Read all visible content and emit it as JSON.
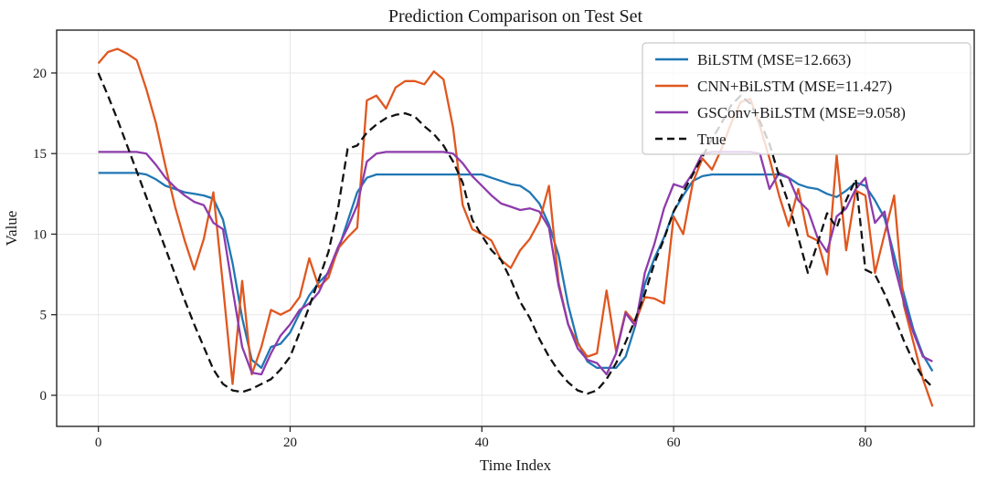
{
  "title": "Prediction Comparison on Test Set",
  "axes": {
    "xlabel": "Time Index",
    "ylabel": "Value",
    "x_ticks": [
      0,
      20,
      40,
      60,
      80
    ],
    "y_ticks": [
      0,
      5,
      10,
      15,
      20
    ]
  },
  "legend": {
    "position": "upper right",
    "entries": [
      {
        "label": "BiLSTM (MSE=12.663)",
        "mse": 12.663,
        "color": "#1f77b4",
        "dash": false
      },
      {
        "label": "CNN+BiLSTM (MSE=11.427)",
        "mse": 11.427,
        "color": "#e0571f",
        "dash": false
      },
      {
        "label": "GSConv+BiLSTM (MSE=9.058)",
        "mse": 9.058,
        "color": "#8e3bac",
        "dash": false
      },
      {
        "label": "True",
        "mse": null,
        "color": "#111111",
        "dash": true
      }
    ]
  },
  "chart_data": {
    "type": "line",
    "title": "Prediction Comparison on Test Set",
    "xlabel": "Time Index",
    "ylabel": "Value",
    "x_is_index": true,
    "x_range": [
      0,
      87
    ],
    "xlim": [
      -4.35,
      91.35
    ],
    "ylim": [
      -1.93,
      22.66
    ],
    "grid": true,
    "legend_position": "upper right",
    "series": [
      {
        "name": "BiLSTM (MSE=12.663)",
        "color": "#1f77b4",
        "dash": false,
        "values": [
          13.8,
          13.8,
          13.8,
          13.8,
          13.8,
          13.7,
          13.4,
          13.0,
          12.8,
          12.6,
          12.5,
          12.4,
          12.2,
          10.9,
          8.2,
          4.8,
          2.2,
          1.7,
          3.0,
          3.2,
          3.9,
          5.1,
          6.2,
          7.0,
          7.6,
          9.0,
          10.8,
          12.6,
          13.5,
          13.7,
          13.7,
          13.7,
          13.7,
          13.7,
          13.7,
          13.7,
          13.7,
          13.7,
          13.7,
          13.7,
          13.7,
          13.5,
          13.3,
          13.1,
          13.0,
          12.6,
          11.9,
          10.6,
          8.7,
          5.6,
          3.3,
          2.1,
          1.7,
          1.7,
          1.7,
          2.4,
          4.3,
          6.9,
          8.5,
          9.8,
          11.4,
          12.4,
          13.3,
          13.6,
          13.7,
          13.7,
          13.7,
          13.7,
          13.7,
          13.7,
          13.7,
          13.7,
          13.5,
          13.1,
          12.9,
          12.8,
          12.5,
          12.3,
          12.7,
          13.2,
          13.0,
          12.1,
          11.0,
          8.7,
          6.3,
          4.1,
          2.5,
          1.5
        ]
      },
      {
        "name": "CNN+BiLSTM (MSE=11.427)",
        "color": "#e0571f",
        "dash": false,
        "values": [
          20.6,
          21.3,
          21.5,
          21.2,
          20.8,
          19.0,
          16.9,
          14.2,
          11.7,
          9.6,
          7.8,
          9.7,
          12.6,
          6.8,
          0.7,
          7.1,
          1.3,
          3.0,
          5.3,
          5.0,
          5.3,
          6.1,
          8.5,
          6.7,
          7.3,
          9.1,
          9.8,
          10.4,
          18.3,
          18.6,
          17.8,
          19.1,
          19.5,
          19.5,
          19.3,
          20.1,
          19.6,
          16.6,
          11.8,
          10.3,
          10.0,
          9.6,
          8.4,
          7.9,
          9.0,
          9.7,
          10.8,
          13.0,
          7.0,
          4.4,
          3.2,
          2.4,
          2.6,
          6.5,
          2.7,
          5.2,
          4.5,
          6.1,
          6.0,
          5.7,
          11.1,
          10.0,
          13.2,
          14.7,
          14.0,
          15.3,
          16.9,
          18.2,
          18.4,
          16.7,
          14.7,
          12.4,
          10.5,
          12.8,
          9.9,
          9.6,
          7.5,
          14.9,
          9.0,
          12.7,
          12.4,
          7.6,
          10.0,
          12.4,
          5.6,
          3.3,
          1.0,
          -0.7
        ]
      },
      {
        "name": "GSConv+BiLSTM (MSE=9.058)",
        "color": "#8e3bac",
        "dash": false,
        "values": [
          15.1,
          15.1,
          15.1,
          15.1,
          15.1,
          15.0,
          14.3,
          13.5,
          12.9,
          12.4,
          12.0,
          11.8,
          10.7,
          10.3,
          6.6,
          3.0,
          1.4,
          1.3,
          2.6,
          3.7,
          4.4,
          5.3,
          5.7,
          6.4,
          7.7,
          9.2,
          10.4,
          11.8,
          14.5,
          15.0,
          15.1,
          15.1,
          15.1,
          15.1,
          15.1,
          15.1,
          15.1,
          15.0,
          14.4,
          13.6,
          13.0,
          12.4,
          11.9,
          11.7,
          11.5,
          11.6,
          11.4,
          10.4,
          6.8,
          4.4,
          2.9,
          2.2,
          2.0,
          1.3,
          2.6,
          5.1,
          4.3,
          7.6,
          9.4,
          11.6,
          13.1,
          12.9,
          13.8,
          15.0,
          15.1,
          15.1,
          15.1,
          15.1,
          15.1,
          15.0,
          12.8,
          13.8,
          13.5,
          12.1,
          11.5,
          9.8,
          8.9,
          11.1,
          11.6,
          12.8,
          13.5,
          10.7,
          11.4,
          8.1,
          5.8,
          3.9,
          2.4,
          2.1
        ]
      },
      {
        "name": "True",
        "color": "#111111",
        "dash": true,
        "values": [
          20.0,
          18.6,
          17.1,
          15.5,
          13.9,
          12.3,
          10.7,
          9.1,
          7.5,
          5.9,
          4.4,
          3.0,
          1.6,
          0.7,
          0.3,
          0.2,
          0.4,
          0.7,
          1.0,
          1.6,
          2.4,
          3.9,
          5.5,
          7.2,
          8.9,
          11.6,
          15.3,
          15.5,
          16.3,
          16.8,
          17.2,
          17.4,
          17.5,
          17.3,
          16.7,
          16.2,
          15.5,
          14.5,
          13.2,
          10.9,
          9.9,
          9.0,
          8.4,
          7.2,
          5.8,
          4.8,
          3.5,
          2.4,
          1.5,
          0.8,
          0.3,
          0.1,
          0.3,
          1.0,
          2.0,
          3.3,
          4.7,
          6.3,
          8.2,
          9.7,
          11.4,
          12.6,
          13.7,
          14.8,
          15.9,
          16.9,
          18.0,
          18.6,
          18.1,
          17.0,
          15.6,
          13.6,
          11.9,
          9.8,
          7.6,
          9.4,
          11.3,
          10.4,
          12.1,
          13.4,
          7.8,
          7.5,
          6.3,
          4.9,
          3.4,
          2.1,
          1.1,
          0.5
        ]
      }
    ]
  },
  "style": {
    "grid_color": "#e7e7e7",
    "spine_color": "#262626",
    "legend_border_color": "#c9c9c9",
    "background": "#ffffff"
  }
}
